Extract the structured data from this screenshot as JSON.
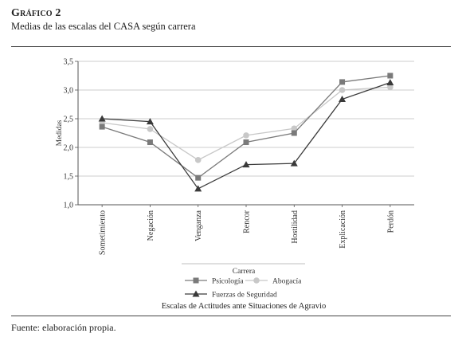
{
  "figure": {
    "label": "Gráfico 2",
    "title": "Medias de las escalas del CASA según carrera",
    "source": "Fuente: elaboración propia."
  },
  "chart_data": {
    "type": "line",
    "categories": [
      "Sometimiento",
      "Negación",
      "Venganza",
      "Rencor",
      "Hostilidad",
      "Explicación",
      "Perdón"
    ],
    "ylabel": "Medidas",
    "xlabel": "Escalas de Actitudes ante Situaciones de Agravio",
    "ylim": [
      1.0,
      3.5
    ],
    "yticks": [
      1.0,
      1.5,
      2.0,
      2.5,
      3.0,
      3.5
    ],
    "ytick_labels": [
      "1,0",
      "1,5",
      "2,0",
      "2,5",
      "3,0",
      "3,5"
    ],
    "grid": true,
    "legend": {
      "title": "Carrera",
      "placement": "bottom-center"
    },
    "series": [
      {
        "name": "Psicología",
        "marker": "square",
        "color": "#7a7a7a",
        "values": [
          2.36,
          2.09,
          1.47,
          2.09,
          2.25,
          3.14,
          3.25
        ]
      },
      {
        "name": "Abogacía",
        "marker": "circle",
        "color": "#c8c8c8",
        "values": [
          2.43,
          2.32,
          1.78,
          2.21,
          2.33,
          3.0,
          3.05
        ]
      },
      {
        "name": "Fuerzas de Seguridad",
        "marker": "triangle",
        "color": "#3a3a3a",
        "values": [
          2.5,
          2.45,
          1.28,
          1.7,
          1.72,
          2.84,
          3.13
        ]
      }
    ]
  }
}
